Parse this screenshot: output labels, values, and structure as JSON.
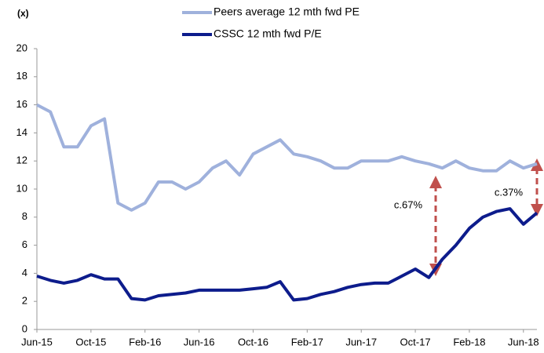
{
  "chart_data": {
    "type": "line",
    "y_axis_label": "(x)",
    "categories": [
      "Jun-15",
      null,
      null,
      null,
      "Oct-15",
      null,
      null,
      null,
      "Feb-16",
      null,
      null,
      null,
      "Jun-16",
      null,
      null,
      null,
      "Oct-16",
      null,
      null,
      null,
      "Feb-17",
      null,
      null,
      null,
      "Jun-17",
      null,
      null,
      null,
      "Oct-17",
      null,
      null,
      null,
      "Feb-18",
      null,
      null,
      null,
      "Jun-18",
      null
    ],
    "series": [
      {
        "name": "Peers average 12 mth fwd PE",
        "color": "#9fb1dc",
        "values": [
          16,
          15.5,
          13,
          13,
          14.5,
          15,
          9,
          8.5,
          9,
          10.5,
          10.5,
          10,
          10.5,
          11.5,
          12,
          11,
          12.5,
          13,
          13.5,
          12.5,
          12.3,
          12,
          11.5,
          11.5,
          12,
          12,
          12,
          12.3,
          12,
          11.8,
          11.5,
          12,
          11.5,
          11.3,
          11.3,
          12,
          11.5,
          11.8
        ]
      },
      {
        "name": "CSSC 12 mth fwd P/E",
        "color": "#0d1c8c",
        "values": [
          3.8,
          3.5,
          3.3,
          3.5,
          3.9,
          3.6,
          3.6,
          2.2,
          2.1,
          2.4,
          2.5,
          2.6,
          2.8,
          2.8,
          2.8,
          2.8,
          2.9,
          3.0,
          3.4,
          2.1,
          2.2,
          2.5,
          2.7,
          3.0,
          3.2,
          3.3,
          3.3,
          3.8,
          4.3,
          3.7,
          5.0,
          6.0,
          7.2,
          8.0,
          8.4,
          8.6,
          7.5,
          8.3
        ]
      }
    ],
    "ylim": [
      0,
      20
    ],
    "yticks": [
      0,
      2,
      4,
      6,
      8,
      10,
      12,
      14,
      16,
      18,
      20
    ],
    "grid": false,
    "annotations": [
      "c.67%",
      "c.37%"
    ]
  }
}
